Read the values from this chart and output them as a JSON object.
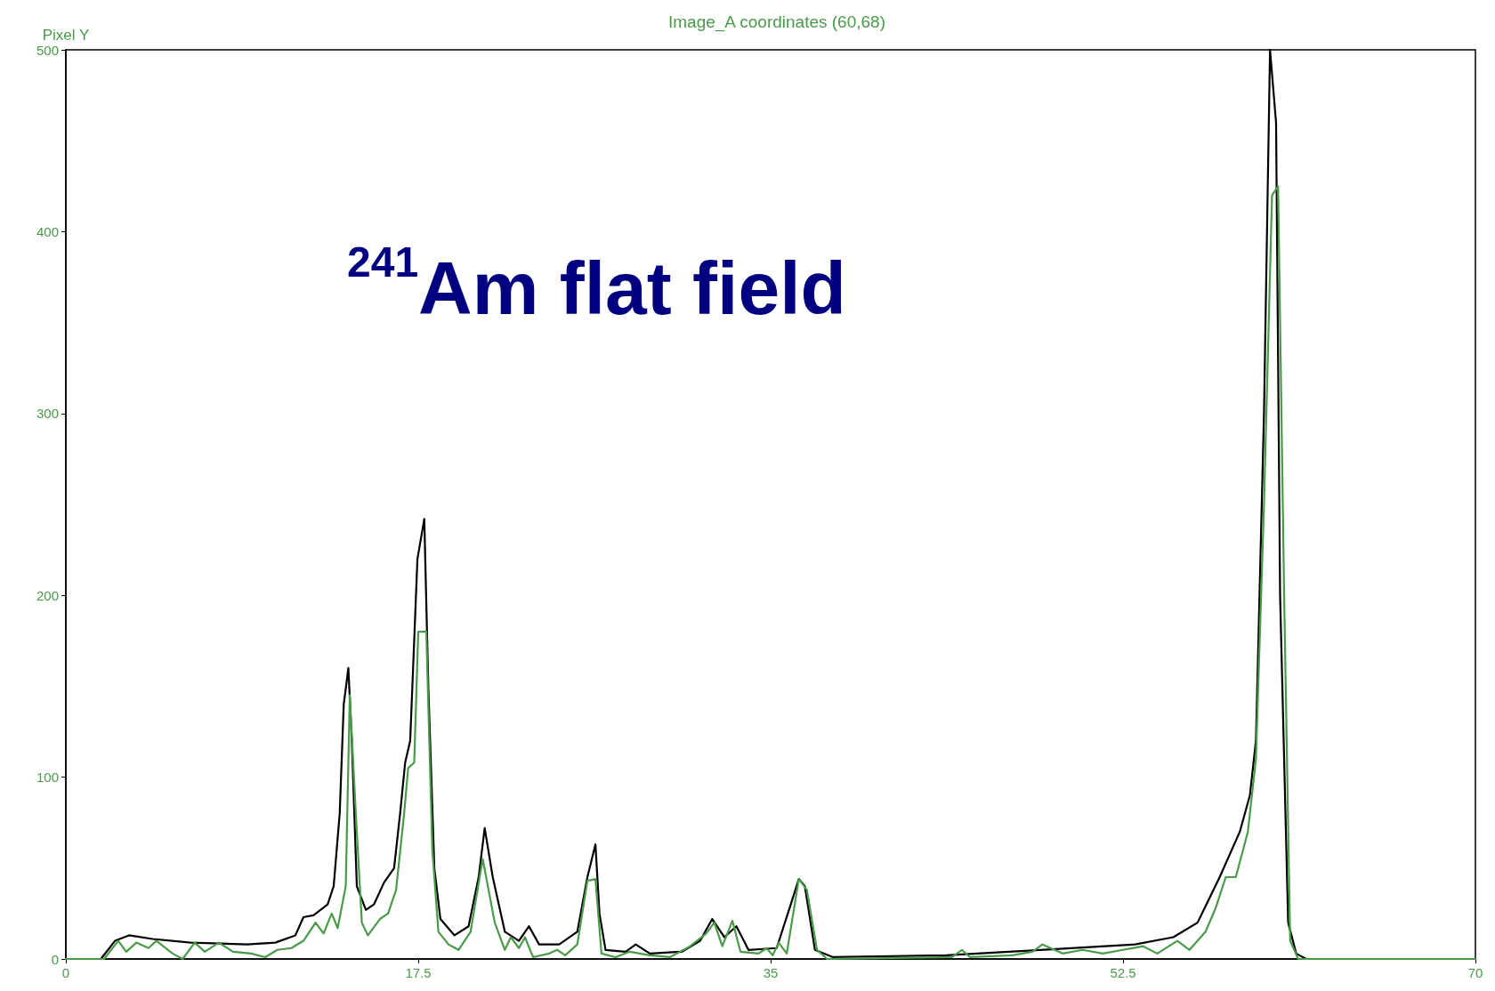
{
  "chart_data": {
    "type": "line",
    "title": "Image_A coordinates (60,68)",
    "ylabel": "Pixel Y",
    "annotations": [
      "$^{241}$Am flat field"
    ],
    "xlim": [
      0,
      70
    ],
    "xticks": [
      0,
      17.5,
      35,
      52.5,
      70
    ],
    "ylim": [
      0,
      500
    ],
    "yticks": [
      0,
      100,
      200,
      300,
      400,
      500
    ],
    "grid": false,
    "marker": "none",
    "line_style": "solid",
    "series": [
      {
        "color": "#000000",
        "x": [
          0,
          1.74,
          2.44,
          3.14,
          4.3,
          6.2,
          9.0,
          10.4,
          11.4,
          11.8,
          12.3,
          13.0,
          13.3,
          13.6,
          13.8,
          14.03,
          14.2,
          14.45,
          14.9,
          15.3,
          15.8,
          16.3,
          16.6,
          16.85,
          17.1,
          17.46,
          17.8,
          18.0,
          18.3,
          18.6,
          19.3,
          20.0,
          20.5,
          20.8,
          21.2,
          21.8,
          22.5,
          23.0,
          23.5,
          24.5,
          25.4,
          25.9,
          26.3,
          26.5,
          26.8,
          27.8,
          28.3,
          29.0,
          30.6,
          31.5,
          32.1,
          32.7,
          33.3,
          33.9,
          35.3,
          36.0,
          36.4,
          36.7,
          37.2,
          38.1,
          43.7,
          48.4,
          53.1,
          55.0,
          56.2,
          57.3,
          58.3,
          58.8,
          59.1,
          59.5,
          59.8,
          60.1,
          60.3,
          60.7,
          61.1,
          61.6,
          70
        ],
        "values": [
          0,
          0,
          10,
          13,
          11,
          9,
          8,
          9,
          13,
          23,
          24,
          30,
          40,
          80,
          140,
          160,
          120,
          40,
          27,
          30,
          42,
          50,
          80,
          108,
          120,
          220,
          242,
          150,
          50,
          22,
          13,
          18,
          45,
          72,
          45,
          15,
          10,
          18,
          8,
          8,
          15,
          45,
          63,
          25,
          5,
          4,
          8,
          3,
          4,
          10,
          22,
          12,
          18,
          5,
          6,
          30,
          44,
          40,
          5,
          1,
          2,
          5,
          8,
          12,
          20,
          45,
          70,
          90,
          120,
          300,
          500,
          460,
          200,
          20,
          3,
          0,
          0
        ]
      },
      {
        "color": "#4a9a4a",
        "x": [
          0,
          1.9,
          2.6,
          3.0,
          3.5,
          4.1,
          4.5,
          5.3,
          5.8,
          6.4,
          6.9,
          7.6,
          8.3,
          9.2,
          9.9,
          10.5,
          11.2,
          11.8,
          12.4,
          12.8,
          13.2,
          13.5,
          13.9,
          14.1,
          14.4,
          14.7,
          15.0,
          15.6,
          16.0,
          16.4,
          16.8,
          17.0,
          17.3,
          17.5,
          17.9,
          18.2,
          18.5,
          19.0,
          19.5,
          20.1,
          20.7,
          21.3,
          21.8,
          22.1,
          22.5,
          22.8,
          23.2,
          24.0,
          24.4,
          24.8,
          25.4,
          25.9,
          26.3,
          26.6,
          27.3,
          28.0,
          29.0,
          30.0,
          31.0,
          31.8,
          32.2,
          32.6,
          33.1,
          33.5,
          34.4,
          34.8,
          35.1,
          35.4,
          35.8,
          36.4,
          36.8,
          37.3,
          37.8,
          44.0,
          44.5,
          44.9,
          47.0,
          48.0,
          48.5,
          49.5,
          50.5,
          51.5,
          52.5,
          53.5,
          54.2,
          55.2,
          55.8,
          56.6,
          57.1,
          57.6,
          58.1,
          58.7,
          59.1,
          59.5,
          59.9,
          60.2,
          60.5,
          60.8,
          61.2,
          70
        ],
        "values": [
          0,
          0,
          10,
          4,
          9,
          6,
          10,
          3,
          0,
          9,
          4,
          9,
          4,
          3,
          1,
          5,
          6,
          10,
          20,
          14,
          25,
          17,
          40,
          145,
          80,
          20,
          13,
          22,
          25,
          38,
          80,
          105,
          108,
          180,
          180,
          60,
          15,
          8,
          5,
          15,
          55,
          20,
          5,
          12,
          6,
          12,
          1,
          3,
          5,
          2,
          8,
          43,
          44,
          3,
          1,
          4,
          2,
          1,
          7,
          14,
          20,
          7,
          21,
          4,
          3,
          6,
          2,
          9,
          3,
          44,
          38,
          5,
          0,
          1,
          5,
          1,
          2,
          4,
          8,
          3,
          5,
          3,
          5,
          7,
          3,
          10,
          5,
          15,
          28,
          45,
          45,
          70,
          110,
          250,
          420,
          425,
          200,
          10,
          0,
          0
        ]
      }
    ]
  }
}
